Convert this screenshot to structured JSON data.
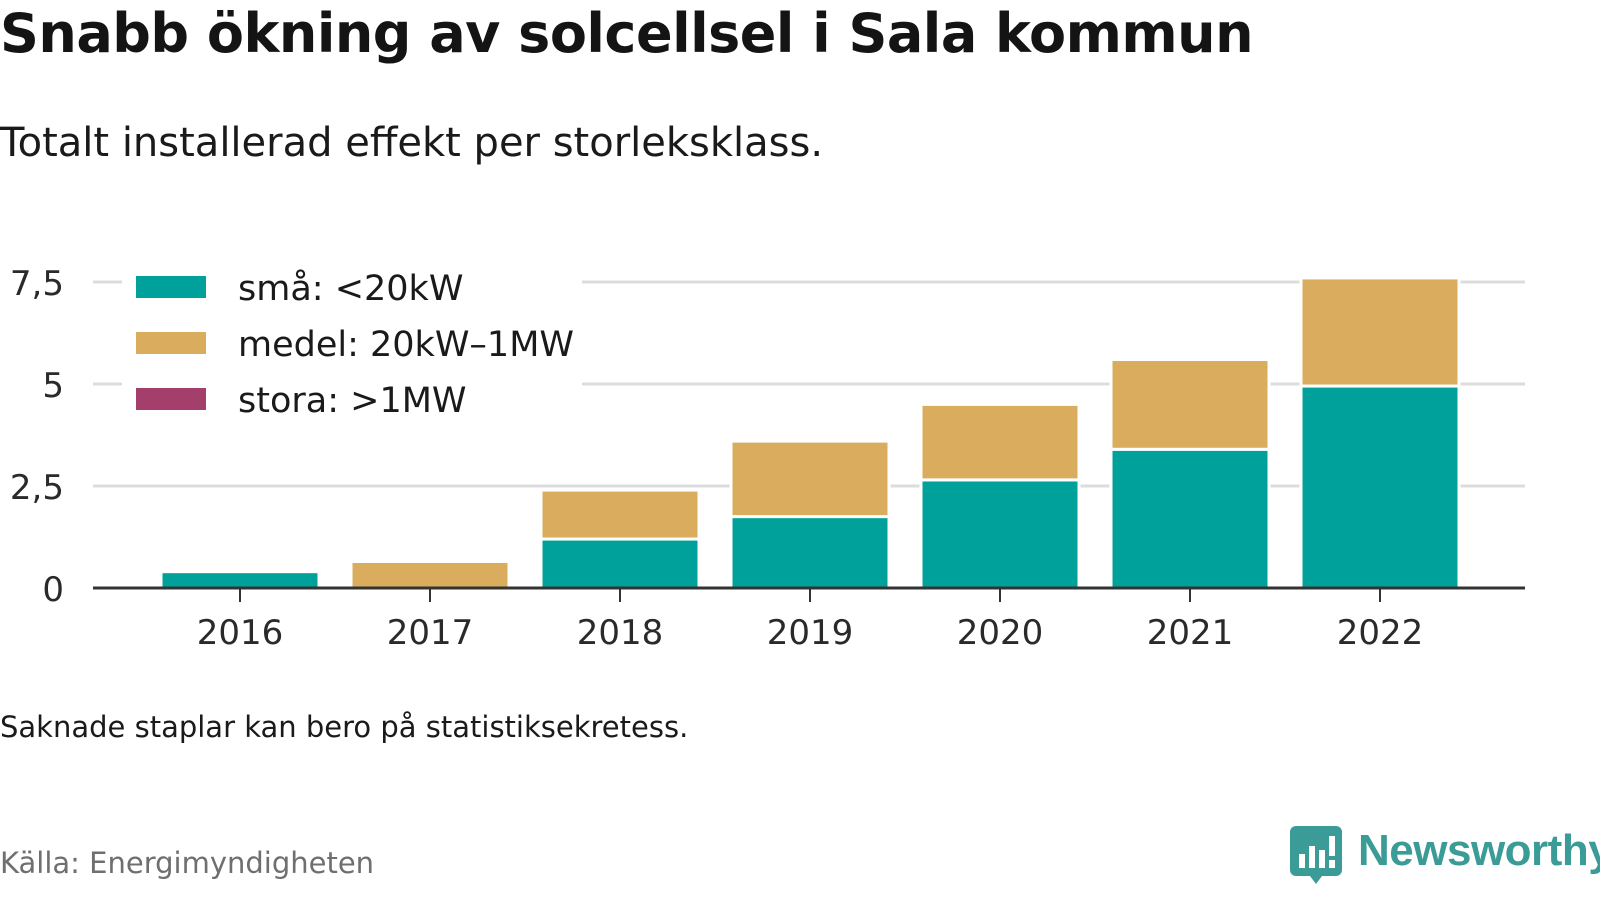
{
  "title": "Snabb ökning av solcellsel i Sala kommun",
  "subtitle": "Totalt installerad effekt per storleksklass.",
  "note": "Saknade staplar kan bero på statistiksekretess.",
  "source": "Källa: Energimyndigheten",
  "logo": {
    "text": "Newsworthy",
    "icon": "newsworthy-chart-bubble-icon",
    "color": "#3a9b97"
  },
  "chart_data": {
    "type": "bar",
    "stacked": true,
    "categories": [
      "2016",
      "2017",
      "2018",
      "2019",
      "2020",
      "2021",
      "2022"
    ],
    "series": [
      {
        "name": "små: <20kW",
        "color": "#00a19a",
        "values": [
          0.4,
          0,
          1.2,
          1.75,
          2.65,
          3.4,
          4.95
        ]
      },
      {
        "name": "medel: 20kW–1MW",
        "color": "#d9ad5d",
        "values": [
          0,
          0.65,
          1.2,
          1.85,
          1.85,
          2.2,
          2.65
        ]
      },
      {
        "name": "stora: >1MW",
        "color": "#a43f6b",
        "values": [
          0,
          0,
          0,
          0,
          0,
          0,
          0
        ]
      }
    ],
    "yticks": [
      0,
      2.5,
      5,
      7.5
    ],
    "ytick_labels": [
      "0",
      "2,5",
      "5",
      "7,5"
    ],
    "ylim": [
      0,
      7.6
    ],
    "grid": true,
    "legend_position": "top-left"
  }
}
